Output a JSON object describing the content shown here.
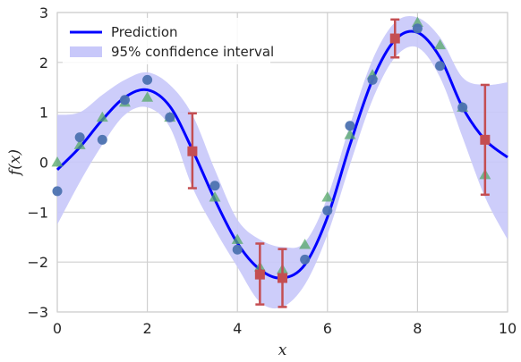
{
  "chart_data": {
    "type": "line",
    "xlabel": "x",
    "ylabel": "f(x)",
    "xlim": [
      0,
      10
    ],
    "ylim": [
      -3,
      3
    ],
    "xticks": [
      0,
      2,
      4,
      6,
      8,
      10
    ],
    "yticks": [
      -3,
      -2,
      -1,
      0,
      1,
      2,
      3
    ],
    "xtick_labels": [
      "0",
      "2",
      "4",
      "6",
      "8",
      "10"
    ],
    "ytick_labels": [
      "−3",
      "−2",
      "−1",
      "0",
      "1",
      "2",
      "3"
    ],
    "grid": true,
    "legend_position": "top-left",
    "legend": [
      {
        "label": "Prediction",
        "kind": "line"
      },
      {
        "label": "95% confidence interval",
        "kind": "band"
      }
    ],
    "colors": {
      "prediction": "#0000ff",
      "band": "#c8c8fa",
      "observed": "#4c72b0",
      "true_function": "#55a868",
      "test": "#c44e52",
      "grid": "#cfcfcf"
    },
    "prediction": {
      "x": [
        0,
        0.5,
        1,
        1.5,
        2,
        2.5,
        3,
        3.5,
        4,
        4.5,
        5,
        5.5,
        6,
        6.5,
        7,
        7.5,
        8,
        8.5,
        9,
        9.5,
        10
      ],
      "y": [
        -0.15,
        0.3,
        0.85,
        1.3,
        1.45,
        1.12,
        0.25,
        -0.75,
        -1.62,
        -2.15,
        -2.32,
        -2.05,
        -1.1,
        0.35,
        1.65,
        2.45,
        2.6,
        2.1,
        1.1,
        0.45,
        0.1
      ]
    },
    "confidence_band": {
      "x": [
        0,
        0.5,
        1,
        1.5,
        2,
        2.5,
        3,
        3.5,
        4,
        4.5,
        5,
        5.5,
        6,
        6.5,
        7,
        7.5,
        8,
        8.5,
        9,
        9.5,
        10
      ],
      "lower": [
        -1.25,
        -0.4,
        0.35,
        0.95,
        1.1,
        0.7,
        -0.5,
        -1.35,
        -2.1,
        -2.8,
        -2.9,
        -2.45,
        -1.45,
        -0.05,
        1.25,
        2.1,
        2.3,
        1.7,
        0.5,
        -0.7,
        -1.55
      ],
      "upper": [
        0.95,
        1.0,
        1.35,
        1.65,
        1.8,
        1.55,
        0.95,
        -0.15,
        -1.15,
        -1.55,
        -1.7,
        -1.6,
        -0.7,
        0.75,
        2.05,
        2.8,
        2.9,
        2.5,
        1.7,
        1.55,
        1.6
      ]
    },
    "observed_points": {
      "x": [
        0,
        0.5,
        1,
        1.5,
        2,
        2.5,
        3.5,
        4,
        5.5,
        6,
        6.5,
        7,
        8,
        8.5,
        9
      ],
      "y": [
        -0.58,
        0.5,
        0.45,
        1.25,
        1.65,
        0.9,
        -0.47,
        -1.75,
        -1.95,
        -0.97,
        0.73,
        1.65,
        2.68,
        1.93,
        1.1
      ]
    },
    "true_points": {
      "x": [
        0,
        0.5,
        1,
        1.5,
        2,
        2.5,
        3.5,
        4,
        4.5,
        5,
        5.5,
        6,
        6.5,
        7,
        8,
        8.5,
        9,
        9.5
      ],
      "y": [
        0.0,
        0.35,
        0.9,
        1.2,
        1.3,
        0.9,
        -0.7,
        -1.55,
        -2.1,
        -2.15,
        -1.65,
        -0.7,
        0.55,
        1.75,
        2.8,
        2.35,
        1.1,
        -0.25
      ]
    },
    "test_points": {
      "x": [
        3,
        4.5,
        5,
        7.5,
        9.5
      ],
      "y": [
        0.22,
        -2.25,
        -2.32,
        2.48,
        0.45
      ],
      "err_low": [
        -0.52,
        -2.85,
        -2.9,
        2.1,
        -0.65
      ],
      "err_high": [
        0.98,
        -1.63,
        -1.74,
        2.86,
        1.55
      ]
    }
  }
}
